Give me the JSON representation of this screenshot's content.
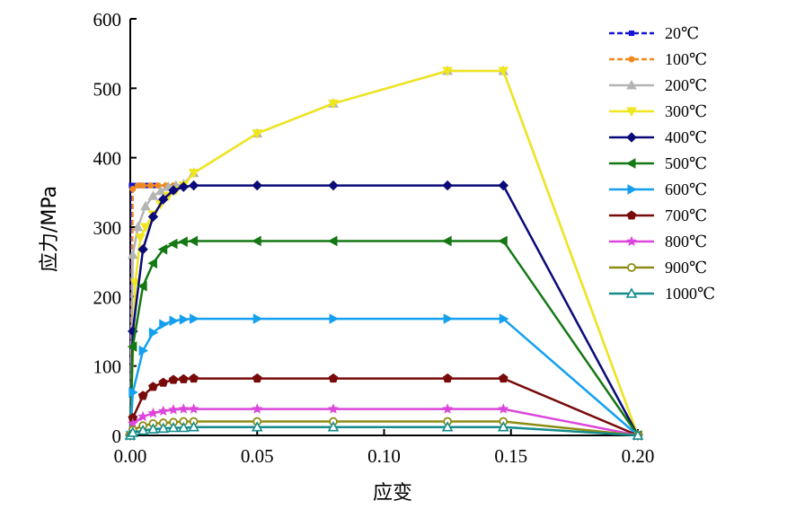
{
  "chart_data": {
    "type": "line",
    "xlabel": "应变",
    "ylabel": "应力/MPa",
    "xlim": [
      0,
      0.2
    ],
    "ylim": [
      0,
      600
    ],
    "x_ticks": [
      0.0,
      0.05,
      0.1,
      0.15,
      0.2
    ],
    "x_tick_labels": [
      "0.00",
      "0.05",
      "0.10",
      "0.15",
      "0.20"
    ],
    "y_ticks": [
      0,
      100,
      200,
      300,
      400,
      500,
      600
    ],
    "y_tick_labels": [
      "0",
      "100",
      "200",
      "300",
      "400",
      "500",
      "600"
    ],
    "grid": false,
    "legend_position": "right",
    "series": [
      {
        "name": "20℃",
        "color": "#1414d2",
        "marker": "square",
        "x": [
          0.0,
          0.0005,
          0.002,
          0.004,
          0.006,
          0.008,
          0.01
        ],
        "y": [
          0,
          360,
          360,
          360,
          360,
          360,
          360
        ]
      },
      {
        "name": "100℃",
        "color": "#f08a1e",
        "marker": "circle",
        "x": [
          0.0,
          0.001,
          0.003,
          0.005,
          0.008,
          0.011,
          0.014,
          0.017
        ],
        "y": [
          0,
          355,
          360,
          360,
          360,
          360,
          360,
          360
        ]
      },
      {
        "name": "200℃",
        "color": "#b4b4b4",
        "marker": "triangle-up",
        "x": [
          0.0,
          0.001,
          0.003,
          0.006,
          0.009,
          0.012,
          0.015,
          0.018,
          0.021,
          0.025,
          0.05,
          0.08,
          0.125,
          0.147,
          0.2
        ],
        "y": [
          0,
          260,
          300,
          330,
          345,
          352,
          358,
          360,
          362,
          378,
          435,
          478,
          525,
          525,
          0
        ]
      },
      {
        "name": "300℃",
        "color": "#f0e61e",
        "marker": "triangle-down",
        "x": [
          0.0,
          0.002,
          0.004,
          0.006,
          0.009,
          0.012,
          0.015,
          0.018,
          0.021,
          0.025,
          0.05,
          0.08,
          0.125,
          0.147,
          0.2
        ],
        "y": [
          0,
          220,
          285,
          300,
          318,
          333,
          345,
          353,
          360,
          378,
          435,
          478,
          525,
          525,
          0
        ]
      },
      {
        "name": "400℃",
        "color": "#0a0a78",
        "marker": "diamond",
        "x": [
          0.0,
          0.001,
          0.005,
          0.009,
          0.013,
          0.017,
          0.021,
          0.025,
          0.05,
          0.08,
          0.125,
          0.147,
          0.2
        ],
        "y": [
          0,
          150,
          268,
          315,
          340,
          353,
          358,
          360,
          360,
          360,
          360,
          360,
          0
        ]
      },
      {
        "name": "500℃",
        "color": "#147814",
        "marker": "triangle-left",
        "x": [
          0.0,
          0.001,
          0.005,
          0.009,
          0.013,
          0.017,
          0.021,
          0.025,
          0.05,
          0.08,
          0.125,
          0.147,
          0.2
        ],
        "y": [
          0,
          128,
          215,
          248,
          268,
          276,
          279,
          280,
          280,
          280,
          280,
          280,
          0
        ]
      },
      {
        "name": "600℃",
        "color": "#14a0f0",
        "marker": "triangle-right",
        "x": [
          0.0,
          0.001,
          0.005,
          0.009,
          0.013,
          0.017,
          0.021,
          0.025,
          0.05,
          0.08,
          0.125,
          0.147,
          0.2
        ],
        "y": [
          0,
          62,
          122,
          148,
          160,
          165,
          167,
          168,
          168,
          168,
          168,
          168,
          0
        ]
      },
      {
        "name": "700℃",
        "color": "#780a0a",
        "marker": "pentagon",
        "x": [
          0.0,
          0.001,
          0.005,
          0.009,
          0.013,
          0.017,
          0.021,
          0.025,
          0.05,
          0.08,
          0.125,
          0.147,
          0.2
        ],
        "y": [
          0,
          25,
          57,
          70,
          76,
          80,
          81,
          82,
          82,
          82,
          82,
          82,
          0
        ]
      },
      {
        "name": "800℃",
        "color": "#dc46dc",
        "marker": "star",
        "x": [
          0.0,
          0.001,
          0.005,
          0.009,
          0.013,
          0.017,
          0.021,
          0.025,
          0.05,
          0.08,
          0.125,
          0.147,
          0.2
        ],
        "y": [
          0,
          17,
          27,
          32,
          35,
          37,
          38,
          38,
          38,
          38,
          38,
          38,
          0
        ]
      },
      {
        "name": "900℃",
        "color": "#8c8c14",
        "marker": "circle-open",
        "x": [
          0.0,
          0.001,
          0.005,
          0.009,
          0.013,
          0.017,
          0.021,
          0.025,
          0.05,
          0.08,
          0.125,
          0.147,
          0.2
        ],
        "y": [
          0,
          8,
          14,
          17,
          18,
          19,
          20,
          20,
          20,
          20,
          20,
          20,
          0
        ]
      },
      {
        "name": "1000℃",
        "color": "#148c8c",
        "marker": "triangle-open",
        "x": [
          0.0,
          0.001,
          0.005,
          0.009,
          0.013,
          0.017,
          0.021,
          0.025,
          0.05,
          0.08,
          0.125,
          0.147,
          0.2
        ],
        "y": [
          0,
          4,
          7,
          9,
          10,
          11,
          11,
          12,
          12,
          12,
          12,
          12,
          0
        ]
      }
    ]
  }
}
